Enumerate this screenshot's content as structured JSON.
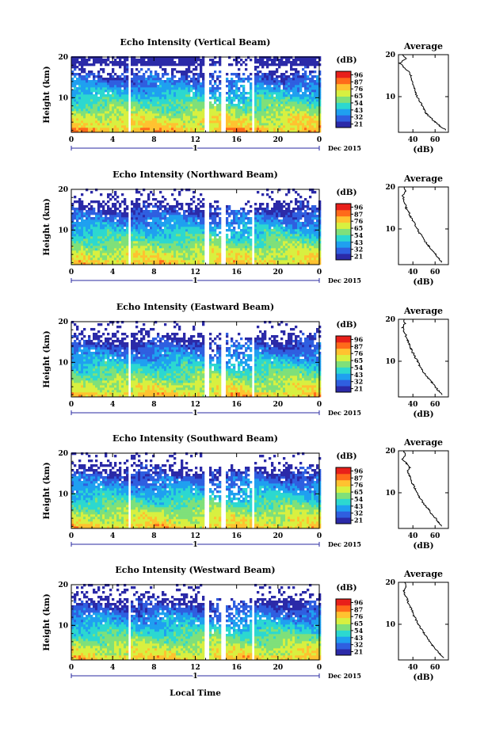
{
  "chart_data": {
    "type": "heatmap",
    "colorbar_unit": "(dB)",
    "colorbar_levels": [
      "96",
      "87",
      "76",
      "65",
      "54",
      "43",
      "32",
      "21"
    ],
    "colormap": [
      "#2b2aa8",
      "#2f5fe0",
      "#1fa0f0",
      "#2cd8d0",
      "#7fe07a",
      "#d8f040",
      "#ffc230",
      "#ff6a1a",
      "#e8201a"
    ],
    "x_ticks": [
      "0",
      "4",
      "8",
      "12",
      "16",
      "20",
      "0"
    ],
    "day_label": "1",
    "date_label": "Dec 2015",
    "xlabel": "Local Time",
    "ylabel": "Height (km)",
    "y_ticks": [
      "20",
      "10"
    ],
    "ylim_km": [
      1.5,
      20
    ],
    "xlim_hours": [
      0,
      24
    ],
    "data_gaps_hours": [
      [
        5.6,
        5.8
      ],
      [
        12.8,
        13.4
      ],
      [
        14.6,
        15.0
      ],
      [
        17.4,
        17.6
      ]
    ],
    "average_title": "Average",
    "average_xlabel": "(dB)",
    "average_x_ticks": [
      "40",
      "60"
    ],
    "average_y_ticks": [
      "20",
      "10"
    ],
    "panels": [
      {
        "name": "vertical",
        "title": "Echo Intensity (Vertical Beam)",
        "colorbar_levels": [
          "96",
          "87",
          "76",
          "65",
          "54",
          "43",
          "32",
          "21"
        ],
        "avg_profile": {
          "height_km": [
            2,
            3,
            4,
            5,
            6,
            7,
            8,
            9,
            10,
            11,
            12,
            13,
            14,
            15,
            16,
            17,
            18,
            19,
            20
          ],
          "db": [
            70,
            64,
            60,
            56,
            52,
            50,
            48,
            46,
            44,
            42,
            41,
            40,
            39,
            38,
            36,
            32,
            28,
            34,
            30
          ]
        }
      },
      {
        "name": "northward",
        "title": "Echo Intensity (Northward Beam)",
        "colorbar_levels": [
          "96",
          "87",
          "76",
          "65",
          "54",
          "43",
          "32",
          "21"
        ],
        "avg_profile": {
          "height_km": [
            2,
            3,
            4,
            5,
            6,
            7,
            8,
            9,
            10,
            11,
            12,
            13,
            14,
            15,
            16,
            17,
            18,
            19,
            20
          ],
          "db": [
            66,
            63,
            60,
            57,
            54,
            51,
            49,
            46,
            44,
            42,
            40,
            38,
            36,
            34,
            33,
            32,
            31,
            33,
            32
          ]
        }
      },
      {
        "name": "eastward",
        "title": "Echo Intensity (Eastward Beam)",
        "colorbar_levels": [
          "96",
          "87",
          "76",
          "65",
          "54",
          "43",
          "32",
          "21"
        ],
        "avg_profile": {
          "height_km": [
            2,
            3,
            4,
            5,
            6,
            7,
            8,
            9,
            10,
            11,
            12,
            13,
            14,
            15,
            16,
            17,
            18,
            19,
            20
          ],
          "db": [
            66,
            63,
            60,
            57,
            54,
            51,
            48,
            46,
            44,
            42,
            40,
            38,
            37,
            35,
            34,
            32,
            31,
            33,
            32
          ]
        }
      },
      {
        "name": "southward",
        "title": "Echo Intensity (Southward Beam)",
        "colorbar_levels": [
          "96",
          "87",
          "76",
          "65",
          "54",
          "43",
          "32",
          "21"
        ],
        "avg_profile": {
          "height_km": [
            2,
            3,
            4,
            5,
            6,
            7,
            8,
            9,
            10,
            11,
            12,
            13,
            14,
            15,
            16,
            17,
            18,
            19,
            20
          ],
          "db": [
            66,
            63,
            60,
            57,
            54,
            51,
            48,
            46,
            44,
            42,
            40,
            38,
            37,
            35,
            37,
            34,
            31,
            33,
            32
          ]
        }
      },
      {
        "name": "westward",
        "title": "Echo Intensity (Westward Beam)",
        "colorbar_levels": [
          "96",
          "87",
          "76",
          "65",
          "54",
          "43",
          "32",
          "21"
        ],
        "avg_profile": {
          "height_km": [
            2,
            3,
            4,
            5,
            6,
            7,
            8,
            9,
            10,
            11,
            12,
            13,
            14,
            15,
            16,
            17,
            18,
            19,
            20
          ],
          "db": [
            68,
            64,
            61,
            58,
            55,
            52,
            50,
            47,
            45,
            43,
            41,
            40,
            38,
            36,
            35,
            33,
            32,
            34,
            33
          ]
        }
      }
    ]
  }
}
